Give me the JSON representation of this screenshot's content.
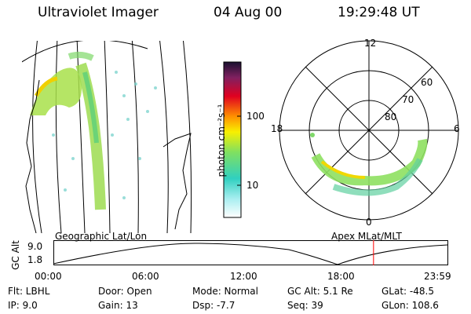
{
  "header": {
    "instrument": "Ultraviolet Imager",
    "date": "04 Aug 00",
    "time": "19:29:48 UT"
  },
  "geo_panel": {
    "caption": "Geographic Lat/Lon"
  },
  "polar_panel": {
    "caption": "Apex MLat/MLT",
    "mlt_labels": {
      "top": "12",
      "left": "18",
      "right": "6",
      "bottom": "0"
    },
    "lat_labels": [
      "60",
      "70",
      "80"
    ]
  },
  "colorbar": {
    "label": "photon cm⁻²s⁻¹",
    "ticks": [
      "100",
      "10"
    ]
  },
  "altitude_plot": {
    "ylabel": "GC Alt",
    "yticks": [
      "9.0",
      "1.8"
    ],
    "xticks": [
      "00:00",
      "06:00",
      "12:00",
      "18:00",
      "23:59"
    ],
    "current_time_fraction": 0.8124,
    "marker_color": "#ff0000"
  },
  "status": {
    "row1": {
      "flt": "Flt:  LBHL",
      "door": "Door:  Open",
      "mode": "Mode:  Normal",
      "gcalt": "GC Alt:  5.1 Re",
      "glat": "GLat:  -48.5"
    },
    "row2": {
      "ip": "IP:   9.0",
      "gain": "Gain:  13",
      "dsp": "Dsp:     -7.7",
      "seq": "Seq:  39",
      "glon": "GLon:  108.6"
    }
  }
}
